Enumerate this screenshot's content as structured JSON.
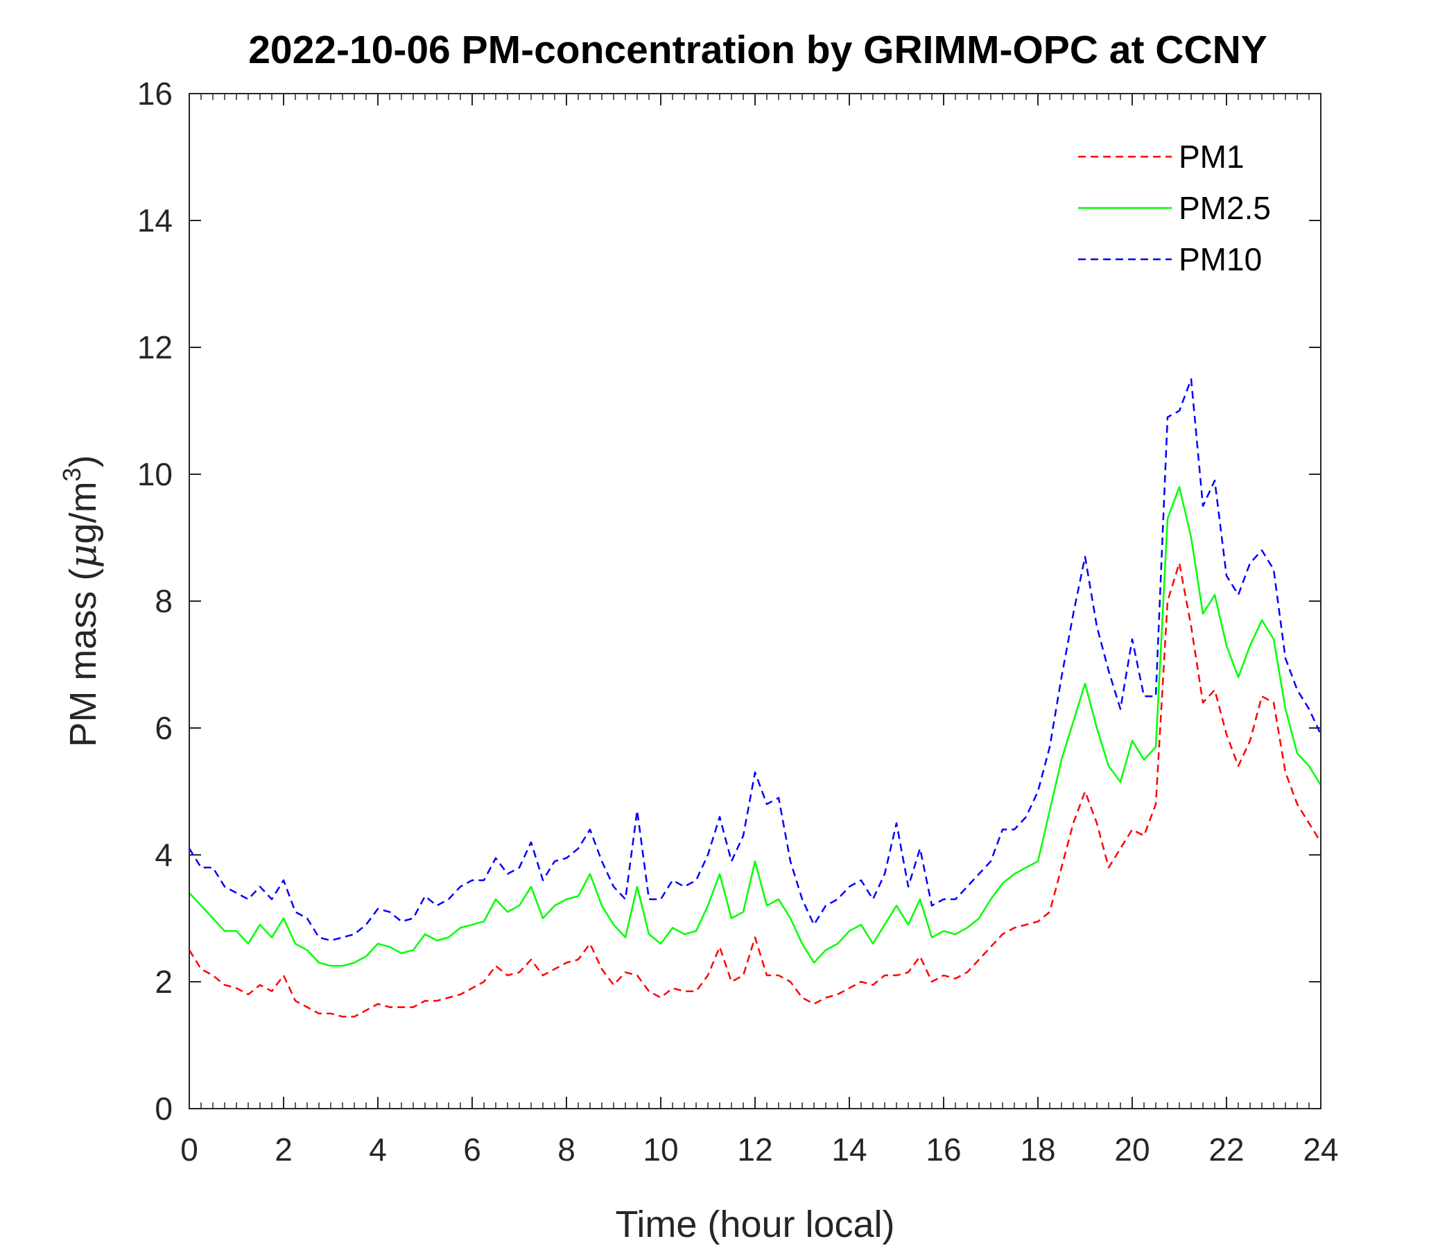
{
  "chart_data": {
    "type": "line",
    "title": "2022-10-06 PM-concentration by GRIMM-OPC at CCNY",
    "xlabel": "Time (hour local)",
    "ylabel_main": "PM mass (",
    "ylabel_mu": "μ",
    "ylabel_unit": "g/m",
    "ylabel_exp": "3",
    "ylabel_close": ")",
    "xlim": [
      0,
      24
    ],
    "ylim": [
      0,
      16
    ],
    "xticks": [
      0,
      2,
      4,
      6,
      8,
      10,
      12,
      14,
      16,
      18,
      20,
      22,
      24
    ],
    "xtick_labels": [
      "0",
      "2",
      "4",
      "6",
      "8",
      "10",
      "12",
      "14",
      "16",
      "18",
      "20",
      "22",
      "24"
    ],
    "yticks": [
      0,
      2,
      4,
      6,
      8,
      10,
      12,
      14,
      16
    ],
    "ytick_labels": [
      "0",
      "2",
      "4",
      "6",
      "8",
      "10",
      "12",
      "14",
      "16"
    ],
    "legend_position": "top-right",
    "series": [
      {
        "name": "PM1",
        "color": "#ff0000",
        "dash": "dashed",
        "x": [
          0,
          0.25,
          0.5,
          0.75,
          1.0,
          1.25,
          1.5,
          1.75,
          2.0,
          2.25,
          2.5,
          2.75,
          3.0,
          3.25,
          3.5,
          3.75,
          4.0,
          4.25,
          4.5,
          4.75,
          5.0,
          5.25,
          5.5,
          5.75,
          6.0,
          6.25,
          6.5,
          6.75,
          7.0,
          7.25,
          7.5,
          7.75,
          8.0,
          8.25,
          8.5,
          8.75,
          9.0,
          9.25,
          9.5,
          9.75,
          10.0,
          10.25,
          10.5,
          10.75,
          11.0,
          11.25,
          11.5,
          11.75,
          12.0,
          12.25,
          12.5,
          12.75,
          13.0,
          13.25,
          13.5,
          13.75,
          14.0,
          14.25,
          14.5,
          14.75,
          15.0,
          15.25,
          15.5,
          15.75,
          16.0,
          16.25,
          16.5,
          16.75,
          17.0,
          17.25,
          17.5,
          17.75,
          18.0,
          18.25,
          18.5,
          18.75,
          19.0,
          19.25,
          19.5,
          19.75,
          20.0,
          20.25,
          20.5,
          20.75,
          21.0,
          21.25,
          21.5,
          21.75,
          22.0,
          22.25,
          22.5,
          22.75,
          23.0,
          23.25,
          23.5,
          23.75,
          24.0
        ],
        "y": [
          2.5,
          2.2,
          2.1,
          1.95,
          1.9,
          1.8,
          1.95,
          1.85,
          2.1,
          1.7,
          1.6,
          1.5,
          1.5,
          1.45,
          1.45,
          1.55,
          1.65,
          1.6,
          1.6,
          1.6,
          1.7,
          1.7,
          1.75,
          1.8,
          1.9,
          2.0,
          2.25,
          2.1,
          2.15,
          2.35,
          2.1,
          2.2,
          2.3,
          2.35,
          2.6,
          2.2,
          1.95,
          2.15,
          2.1,
          1.85,
          1.75,
          1.9,
          1.85,
          1.85,
          2.1,
          2.55,
          2.0,
          2.1,
          2.7,
          2.1,
          2.1,
          2.0,
          1.75,
          1.65,
          1.75,
          1.8,
          1.9,
          2.0,
          1.95,
          2.1,
          2.1,
          2.15,
          2.4,
          2.0,
          2.1,
          2.05,
          2.15,
          2.35,
          2.55,
          2.75,
          2.85,
          2.9,
          2.95,
          3.1,
          3.8,
          4.5,
          5.0,
          4.5,
          3.8,
          4.1,
          4.4,
          4.3,
          4.8,
          8.0,
          8.6,
          7.6,
          6.4,
          6.6,
          5.9,
          5.4,
          5.8,
          6.5,
          6.4,
          5.3,
          4.8,
          4.5,
          4.2
        ]
      },
      {
        "name": "PM2.5",
        "color": "#00ff00",
        "dash": "solid",
        "x": [
          0,
          0.25,
          0.5,
          0.75,
          1.0,
          1.25,
          1.5,
          1.75,
          2.0,
          2.25,
          2.5,
          2.75,
          3.0,
          3.25,
          3.5,
          3.75,
          4.0,
          4.25,
          4.5,
          4.75,
          5.0,
          5.25,
          5.5,
          5.75,
          6.0,
          6.25,
          6.5,
          6.75,
          7.0,
          7.25,
          7.5,
          7.75,
          8.0,
          8.25,
          8.5,
          8.75,
          9.0,
          9.25,
          9.5,
          9.75,
          10.0,
          10.25,
          10.5,
          10.75,
          11.0,
          11.25,
          11.5,
          11.75,
          12.0,
          12.25,
          12.5,
          12.75,
          13.0,
          13.25,
          13.5,
          13.75,
          14.0,
          14.25,
          14.5,
          14.75,
          15.0,
          15.25,
          15.5,
          15.75,
          16.0,
          16.25,
          16.5,
          16.75,
          17.0,
          17.25,
          17.5,
          17.75,
          18.0,
          18.25,
          18.5,
          18.75,
          19.0,
          19.25,
          19.5,
          19.75,
          20.0,
          20.25,
          20.5,
          20.75,
          21.0,
          21.25,
          21.5,
          21.75,
          22.0,
          22.25,
          22.5,
          22.75,
          23.0,
          23.25,
          23.5,
          23.75,
          24.0
        ],
        "y": [
          3.4,
          3.2,
          3.0,
          2.8,
          2.8,
          2.6,
          2.9,
          2.7,
          3.0,
          2.6,
          2.5,
          2.3,
          2.25,
          2.25,
          2.3,
          2.4,
          2.6,
          2.55,
          2.45,
          2.5,
          2.75,
          2.65,
          2.7,
          2.85,
          2.9,
          2.95,
          3.3,
          3.1,
          3.2,
          3.5,
          3.0,
          3.2,
          3.3,
          3.35,
          3.7,
          3.2,
          2.9,
          2.7,
          3.5,
          2.75,
          2.6,
          2.85,
          2.75,
          2.8,
          3.2,
          3.7,
          3.0,
          3.1,
          3.9,
          3.2,
          3.3,
          3.0,
          2.6,
          2.3,
          2.5,
          2.6,
          2.8,
          2.9,
          2.6,
          2.9,
          3.2,
          2.9,
          3.3,
          2.7,
          2.8,
          2.75,
          2.85,
          3.0,
          3.3,
          3.55,
          3.7,
          3.8,
          3.9,
          4.7,
          5.5,
          6.1,
          6.7,
          6.0,
          5.4,
          5.15,
          5.8,
          5.5,
          5.7,
          9.3,
          9.8,
          9.0,
          7.8,
          8.1,
          7.3,
          6.8,
          7.3,
          7.7,
          7.4,
          6.3,
          5.6,
          5.4,
          5.1
        ]
      },
      {
        "name": "PM10",
        "color": "#0000ff",
        "dash": "dashed",
        "x": [
          0,
          0.25,
          0.5,
          0.75,
          1.0,
          1.25,
          1.5,
          1.75,
          2.0,
          2.25,
          2.5,
          2.75,
          3.0,
          3.25,
          3.5,
          3.75,
          4.0,
          4.25,
          4.5,
          4.75,
          5.0,
          5.25,
          5.5,
          5.75,
          6.0,
          6.25,
          6.5,
          6.75,
          7.0,
          7.25,
          7.5,
          7.75,
          8.0,
          8.25,
          8.5,
          8.75,
          9.0,
          9.25,
          9.5,
          9.75,
          10.0,
          10.25,
          10.5,
          10.75,
          11.0,
          11.25,
          11.5,
          11.75,
          12.0,
          12.25,
          12.5,
          12.75,
          13.0,
          13.25,
          13.5,
          13.75,
          14.0,
          14.25,
          14.5,
          14.75,
          15.0,
          15.25,
          15.5,
          15.75,
          16.0,
          16.25,
          16.5,
          16.75,
          17.0,
          17.25,
          17.5,
          17.75,
          18.0,
          18.25,
          18.5,
          18.75,
          19.0,
          19.25,
          19.5,
          19.75,
          20.0,
          20.25,
          20.5,
          20.75,
          21.0,
          21.25,
          21.5,
          21.75,
          22.0,
          22.25,
          22.5,
          22.75,
          23.0,
          23.25,
          23.5,
          23.75,
          24.0
        ],
        "y": [
          4.1,
          3.8,
          3.8,
          3.5,
          3.4,
          3.3,
          3.5,
          3.3,
          3.6,
          3.1,
          3.0,
          2.7,
          2.65,
          2.7,
          2.75,
          2.9,
          3.15,
          3.1,
          2.95,
          3.0,
          3.35,
          3.2,
          3.3,
          3.5,
          3.6,
          3.6,
          3.95,
          3.7,
          3.8,
          4.2,
          3.6,
          3.9,
          3.95,
          4.1,
          4.4,
          3.9,
          3.5,
          3.3,
          4.7,
          3.3,
          3.3,
          3.6,
          3.5,
          3.6,
          4.0,
          4.6,
          3.9,
          4.3,
          5.3,
          4.8,
          4.9,
          3.9,
          3.3,
          2.9,
          3.2,
          3.3,
          3.5,
          3.6,
          3.3,
          3.7,
          4.5,
          3.5,
          4.1,
          3.2,
          3.3,
          3.3,
          3.5,
          3.7,
          3.9,
          4.4,
          4.4,
          4.6,
          5.0,
          5.7,
          6.8,
          7.8,
          8.7,
          7.6,
          6.9,
          6.3,
          7.4,
          6.5,
          6.5,
          10.9,
          11.0,
          11.5,
          9.5,
          9.9,
          8.4,
          8.1,
          8.6,
          8.8,
          8.5,
          7.1,
          6.6,
          6.3,
          5.9
        ]
      }
    ]
  }
}
